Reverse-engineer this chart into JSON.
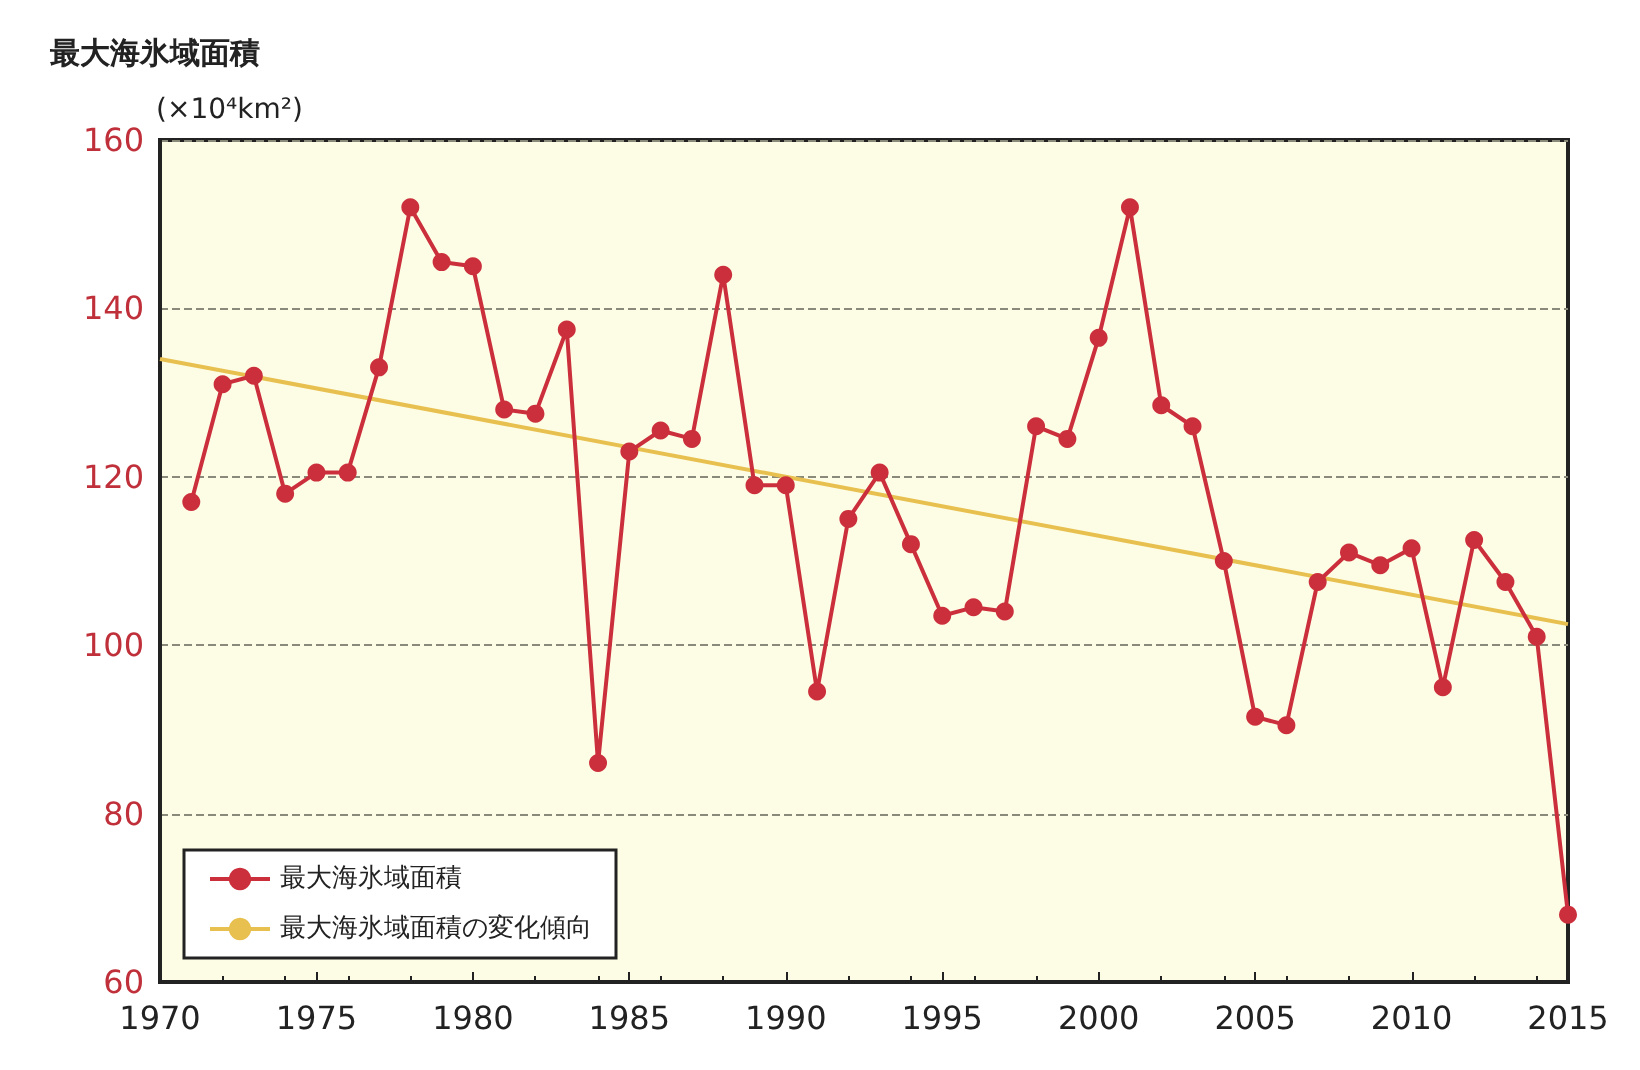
{
  "chart_data": {
    "type": "line",
    "title": "最大海氷域面積",
    "ylabel": "(×10⁴km²)",
    "x": [
      1971,
      1972,
      1973,
      1974,
      1975,
      1976,
      1977,
      1978,
      1979,
      1980,
      1981,
      1982,
      1983,
      1984,
      1985,
      1986,
      1987,
      1988,
      1989,
      1990,
      1991,
      1992,
      1993,
      1994,
      1995,
      1996,
      1997,
      1998,
      1999,
      2000,
      2001,
      2002,
      2003,
      2004,
      2005,
      2006,
      2007,
      2008,
      2009,
      2010,
      2011,
      2012,
      2013,
      2014,
      2015
    ],
    "series": [
      {
        "name": "最大海氷域面積",
        "color": "#cc2f3c",
        "marker": "circle",
        "values": [
          117,
          131,
          132,
          118,
          120.5,
          120.5,
          133,
          152,
          145.5,
          145,
          128,
          127.5,
          137.5,
          86,
          123,
          125.5,
          124.5,
          144,
          119,
          119,
          94.5,
          115,
          120.5,
          112,
          103.5,
          104.5,
          104,
          126,
          124.5,
          136.5,
          152,
          128.5,
          126,
          110,
          91.5,
          90.5,
          107.5,
          111,
          109.5,
          111.5,
          95,
          112.5,
          107.5,
          101,
          68
        ]
      },
      {
        "name": "最大海氷域面積の変化傾向",
        "type": "line",
        "color": "#e8c050",
        "marker": "none",
        "x": [
          1970,
          2015
        ],
        "values": [
          134,
          102.5
        ]
      }
    ],
    "xlim": [
      1970,
      2015
    ],
    "xticks": [
      1970,
      1975,
      1980,
      1985,
      1990,
      1995,
      2000,
      2005,
      2010,
      2015
    ],
    "ylim": [
      60,
      160
    ],
    "yticks": [
      60,
      80,
      100,
      120,
      140,
      160
    ],
    "grid": "y",
    "legend": "bottom left",
    "line_style": "solid"
  }
}
